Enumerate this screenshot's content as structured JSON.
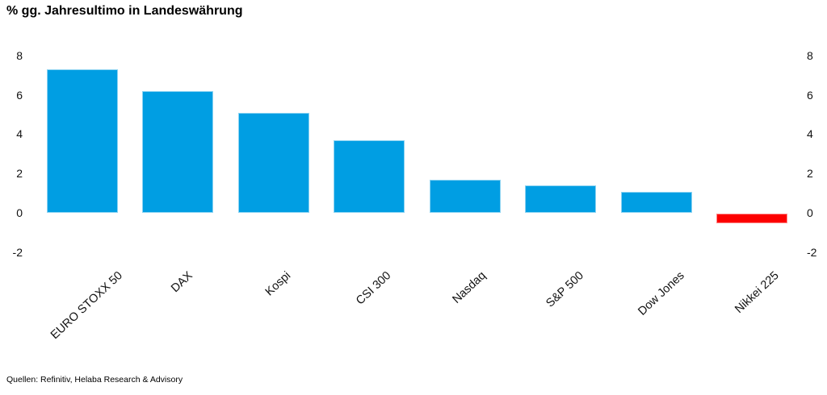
{
  "chart_data": {
    "type": "bar",
    "title": "% gg. Jahresultimo in Landeswährung",
    "categories": [
      "EURO STOXX 50",
      "DAX",
      "Kospi",
      "CSI 300",
      "Nasdaq",
      "S&P 500",
      "Dow Jones",
      "Nikkei 225"
    ],
    "values": [
      7.3,
      6.2,
      5.1,
      3.7,
      1.7,
      1.4,
      1.1,
      -0.5
    ],
    "yticks_left": [
      8,
      6,
      4,
      2,
      0,
      -2
    ],
    "yticks_right": [
      8,
      6,
      4,
      2,
      0,
      -2
    ],
    "ylim": [
      -2.8,
      8.6
    ],
    "grid": false,
    "legend": null,
    "xlabel": "",
    "ylabel": "",
    "colors": {
      "positive_bar": "#009EE3",
      "negative_bar": "#FD0000",
      "text": "#111111"
    },
    "source": "Quellen: Refinitiv, Helaba Research & Advisory"
  }
}
